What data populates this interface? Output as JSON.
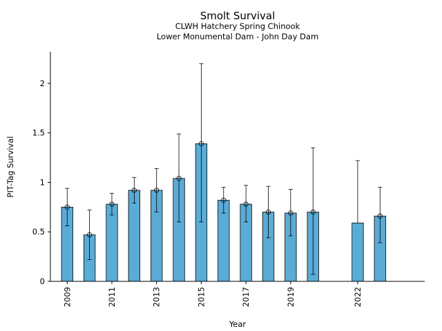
{
  "chart_data": {
    "type": "bar",
    "title": "Smolt Survival",
    "subtitle_1": "CLWH Hatchery Spring Chinook",
    "subtitle_2": "Lower Monumental Dam - John Day Dam",
    "xlabel": "Year",
    "ylabel": "PIT-Tag Survival",
    "ylim": [
      0,
      2.32
    ],
    "xlim": [
      2008.25,
      2025.0
    ],
    "yticks": [
      0,
      0.5,
      1,
      1.5,
      2
    ],
    "ytick_labels": [
      "0",
      "0.5",
      "1",
      "1.5",
      "2"
    ],
    "xtick_labels": [
      "2009",
      "2011",
      "2013",
      "2015",
      "2017",
      "2019",
      "2022"
    ],
    "xtick_values": [
      2009,
      2011,
      2013,
      2015,
      2017,
      2019,
      2022
    ],
    "bar_color": "#5aabd6",
    "grid": false,
    "series": [
      {
        "points": [
          {
            "year": 2009,
            "value": 0.75,
            "lower": 0.56,
            "upper": 0.94
          },
          {
            "year": 2010,
            "value": 0.47,
            "lower": 0.22,
            "upper": 0.72
          },
          {
            "year": 2011,
            "value": 0.78,
            "lower": 0.67,
            "upper": 0.89
          },
          {
            "year": 2012,
            "value": 0.92,
            "lower": 0.79,
            "upper": 1.05
          },
          {
            "year": 2013,
            "value": 0.92,
            "lower": 0.7,
            "upper": 1.14
          },
          {
            "year": 2014,
            "value": 1.04,
            "lower": 0.6,
            "upper": 1.49
          },
          {
            "year": 2015,
            "value": 1.39,
            "lower": 0.6,
            "upper": 2.2
          },
          {
            "year": 2016,
            "value": 0.82,
            "lower": 0.69,
            "upper": 0.95
          },
          {
            "year": 2017,
            "value": 0.78,
            "lower": 0.6,
            "upper": 0.97
          },
          {
            "year": 2018,
            "value": 0.7,
            "lower": 0.44,
            "upper": 0.96
          },
          {
            "year": 2019,
            "value": 0.69,
            "lower": 0.46,
            "upper": 0.93
          },
          {
            "year": 2020,
            "value": 0.7,
            "lower": 0.07,
            "upper": 1.35
          },
          {
            "year": 2022,
            "value": 0.59,
            "lower": null,
            "upper": 1.22
          },
          {
            "year": 2023,
            "value": 0.66,
            "lower": 0.39,
            "upper": 0.95
          }
        ]
      }
    ]
  }
}
